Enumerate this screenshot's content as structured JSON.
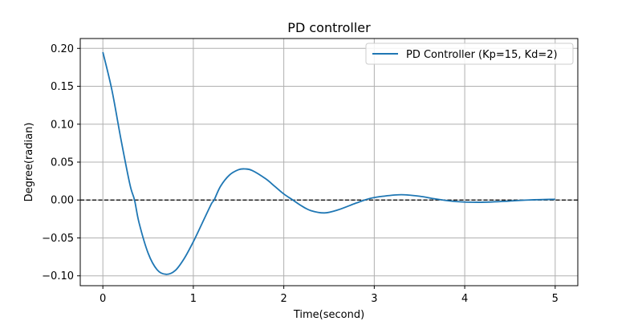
{
  "chart_data": {
    "type": "line",
    "title": "PD controller",
    "xlabel": "Time(second)",
    "ylabel": "Degree(radian)",
    "xlim": [
      -0.25,
      5.25
    ],
    "ylim": [
      -0.113,
      0.213
    ],
    "xticks": [
      0,
      1,
      2,
      3,
      4,
      5
    ],
    "xtick_labels": [
      "0",
      "1",
      "2",
      "3",
      "4",
      "5"
    ],
    "yticks": [
      -0.1,
      -0.05,
      0.0,
      0.05,
      0.1,
      0.15,
      0.2
    ],
    "ytick_labels": [
      "−0.10",
      "−0.05",
      "0.00",
      "0.05",
      "0.10",
      "0.15",
      "0.20"
    ],
    "grid": true,
    "legend_position": "top-right",
    "reference_line": {
      "y": 0.0,
      "style": "dashed",
      "color": "#000000"
    },
    "series": [
      {
        "name": "PD Controller (Kp=15, Kd=2)",
        "color": "#1f77b4",
        "x": [
          0.0,
          0.1,
          0.2,
          0.3,
          0.35,
          0.4,
          0.5,
          0.6,
          0.7,
          0.8,
          0.9,
          1.0,
          1.1,
          1.2,
          1.23,
          1.3,
          1.4,
          1.5,
          1.57,
          1.65,
          1.8,
          1.9,
          2.0,
          2.1,
          2.2,
          2.3,
          2.45,
          2.6,
          2.8,
          2.95,
          3.1,
          3.3,
          3.5,
          3.7,
          3.9,
          4.15,
          4.4,
          4.7,
          5.0
        ],
        "y": [
          0.195,
          0.145,
          0.08,
          0.02,
          0.0,
          -0.03,
          -0.07,
          -0.092,
          -0.098,
          -0.093,
          -0.077,
          -0.055,
          -0.03,
          -0.005,
          0.0,
          0.018,
          0.033,
          0.04,
          0.041,
          0.039,
          0.028,
          0.018,
          0.008,
          0.0,
          -0.008,
          -0.014,
          -0.017,
          -0.013,
          -0.004,
          0.002,
          0.005,
          0.007,
          0.005,
          0.001,
          -0.002,
          -0.003,
          -0.002,
          0.0,
          0.001
        ]
      }
    ]
  }
}
